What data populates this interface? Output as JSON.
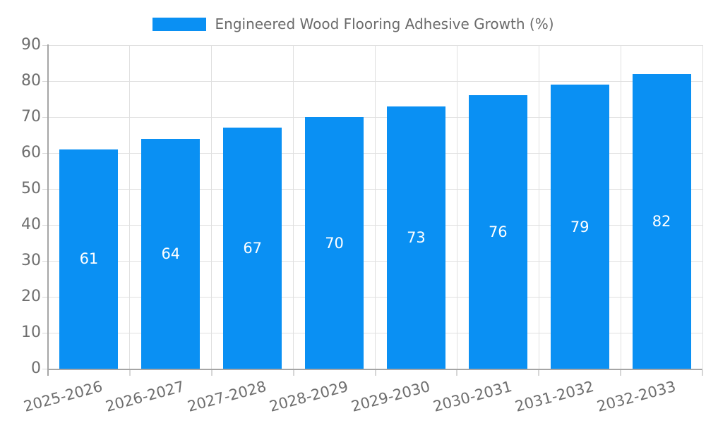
{
  "legend": {
    "label": "Engineered Wood Flooring Adhesive Growth (%)"
  },
  "chart_data": {
    "type": "bar",
    "title": "Engineered Wood Flooring Adhesive Growth (%)",
    "categories": [
      "2025-2026",
      "2026-2027",
      "2027-2028",
      "2028-2029",
      "2029-2030",
      "2030-2031",
      "2031-2032",
      "2032-2033"
    ],
    "values": [
      61,
      64,
      67,
      70,
      73,
      76,
      79,
      82
    ],
    "xlabel": "",
    "ylabel": "",
    "ylim": [
      0,
      90
    ],
    "ytick_step": 10,
    "yticks": [
      0,
      10,
      20,
      30,
      40,
      50,
      60,
      70,
      80,
      90
    ],
    "grid": true,
    "legend_position": "top",
    "value_labels": "inside-center",
    "x_label_rotation_deg": -15,
    "colors": {
      "bar": "#0a90f3",
      "value_label": "#ffffff",
      "grid_line": "#e0e0e0",
      "axis_line": "#a5a5a5",
      "tick_mark": "#d6d6d6",
      "tick_label": "#6e6e6e",
      "legend_text": "#6b6b6b",
      "background": "#ffffff"
    }
  }
}
